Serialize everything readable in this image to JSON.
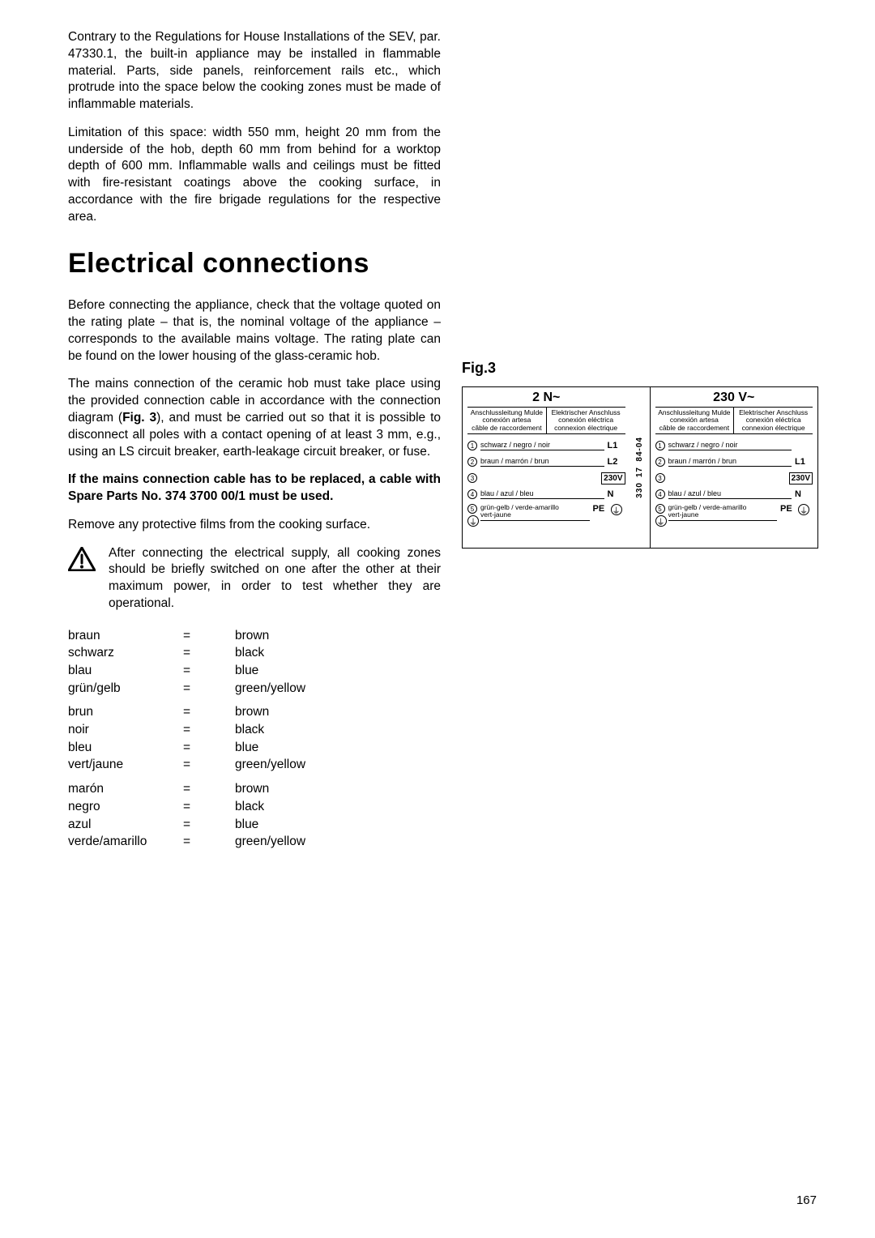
{
  "para1": "Contrary to the Regulations for House Installations of the SEV, par. 47330.1, the built-in appliance may be installed in flammable material. Parts, side panels, reinforcement rails etc., which protrude into the space below the cooking zones must be made of inflammable materials.",
  "para2": "Limitation of this space: width 550 mm, height 20 mm from the underside of the hob, depth 60 mm from behind for a worktop depth of 600 mm. Inflammable walls and ceilings must be fitted with fire-resistant coatings above the cooking surface, in accordance with the fire brigade regulations for the respective area.",
  "heading": "Electrical connections",
  "para3": "Before connecting the appliance, check that the voltage quoted on the rating plate – that is, the nominal voltage of the appliance – corresponds to the available mains voltage. The rating plate can be found on the lower housing of the glass-ceramic hob.",
  "para4a": "The mains connection of the ceramic hob must take place using the provided connection cable in accordance with the connection diagram (",
  "para4b": "Fig. 3",
  "para4c": "), and must be carried out so that it is possible to disconnect all poles with a contact opening of at least 3 mm, e.g., using an LS circuit breaker, earth-leakage circuit breaker, or fuse.",
  "bold": "If the mains connection cable has to be replaced, a cable with Spare Parts No. 374 3700 00/1 must be used.",
  "para5": "Remove any protective films from the cooking surface.",
  "warn": "After connecting the electrical supply, all cooking zones should be briefly switched on one after the other at their maximum power, in order to test whether they are operational.",
  "colors": {
    "g1": [
      [
        "braun",
        "=",
        "brown"
      ],
      [
        "schwarz",
        "=",
        "black"
      ],
      [
        "blau",
        "=",
        "blue"
      ],
      [
        "grün/gelb",
        "=",
        "green/yellow"
      ]
    ],
    "g2": [
      [
        "brun",
        "=",
        "brown"
      ],
      [
        "noir",
        "=",
        "black"
      ],
      [
        "bleu",
        "=",
        "blue"
      ],
      [
        "vert/jaune",
        "=",
        "green/yellow"
      ]
    ],
    "g3": [
      [
        "marón",
        "=",
        "brown"
      ],
      [
        "negro",
        "=",
        "black"
      ],
      [
        "azul",
        "=",
        "blue"
      ],
      [
        "verde/amarillo",
        "=",
        "green/yellow"
      ]
    ]
  },
  "fig": {
    "label": "Fig.3",
    "divider": {
      "top": "84-04",
      "mid": "17",
      "bot": "330"
    },
    "left": {
      "title": "2 N~",
      "sub1": "Anschlussleitung Mulde\nconexión artesa\ncâble de raccordement",
      "sub2": "Elektrischer Anschluss\nconexión eléctrica\nconnexion électrique",
      "wires": [
        {
          "n": "1",
          "label": "schwarz / negro / noir",
          "t": "L1"
        },
        {
          "n": "2",
          "label": "braun / marrón / brun",
          "t": "L2"
        },
        {
          "n": "3",
          "label": "",
          "t": ""
        },
        {
          "n": "4",
          "label": "blau / azul / bleu",
          "t": "N"
        },
        {
          "n": "5",
          "label": "grün-gelb / verde-amarillo\nvert-jaune",
          "t": "PE"
        }
      ],
      "box": "230V"
    },
    "right": {
      "title": "230 V~",
      "sub1": "Anschlussleitung Mulde\nconexión artesa\ncâble de raccordement",
      "sub2": "Elektrischer Anschluss\nconexión eléctrica\nconnexion électrique",
      "wires": [
        {
          "n": "1",
          "label": "schwarz / negro / noir",
          "t": ""
        },
        {
          "n": "2",
          "label": "braun / marrón / brun",
          "t": "L1"
        },
        {
          "n": "3",
          "label": "",
          "t": ""
        },
        {
          "n": "4",
          "label": "blau / azul / bleu",
          "t": "N"
        },
        {
          "n": "5",
          "label": "grün-gelb / verde-amarillo\nvert-jaune",
          "t": "PE"
        }
      ],
      "box": "230V"
    }
  },
  "page": "167"
}
